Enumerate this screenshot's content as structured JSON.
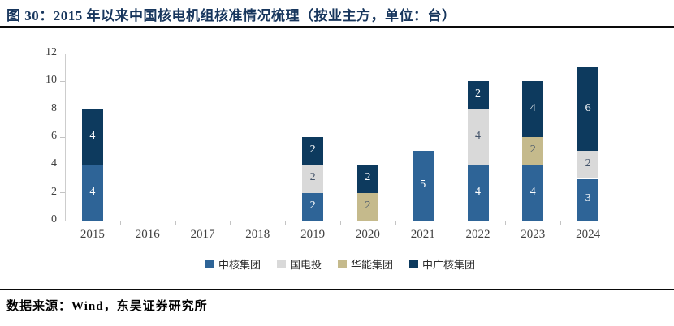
{
  "figure": {
    "title": "图 30：2015 年以来中国核电机组核准情况梳理（按业主方，单位：台）",
    "source": "数据来源：Wind，东吴证券研究所"
  },
  "colors": {
    "title_navy": "#17365D",
    "rule_black": "#0a0a0a",
    "axis_line": "#cdcdcd",
    "axis_text": "#404040"
  },
  "chart_data": {
    "type": "bar",
    "stacked": true,
    "title": "",
    "xlabel": "",
    "ylabel": "",
    "ylim": [
      0,
      12
    ],
    "ytick_step": 2,
    "grid": false,
    "legend_position": "bottom",
    "categories": [
      "2015",
      "2016",
      "2017",
      "2018",
      "2019",
      "2020",
      "2021",
      "2022",
      "2023",
      "2024"
    ],
    "series": [
      {
        "name": "中核集团",
        "color": "#2E6497",
        "label_color": "#FFFFFF",
        "values": [
          4,
          0,
          0,
          0,
          2,
          0,
          5,
          4,
          4,
          3
        ]
      },
      {
        "name": "国电投",
        "color": "#D9D9D9",
        "label_color": "#44546A",
        "values": [
          0,
          0,
          0,
          0,
          2,
          0,
          0,
          4,
          0,
          2
        ]
      },
      {
        "name": "华能集团",
        "color": "#C5BA8C",
        "label_color": "#44546A",
        "values": [
          0,
          0,
          0,
          0,
          0,
          2,
          0,
          0,
          2,
          0
        ]
      },
      {
        "name": "中广核集团",
        "color": "#0D3A5E",
        "label_color": "#FFFFFF",
        "values": [
          4,
          0,
          0,
          0,
          2,
          2,
          0,
          2,
          4,
          6
        ]
      }
    ],
    "totals": [
      8,
      0,
      0,
      0,
      6,
      4,
      5,
      10,
      10,
      11
    ]
  }
}
